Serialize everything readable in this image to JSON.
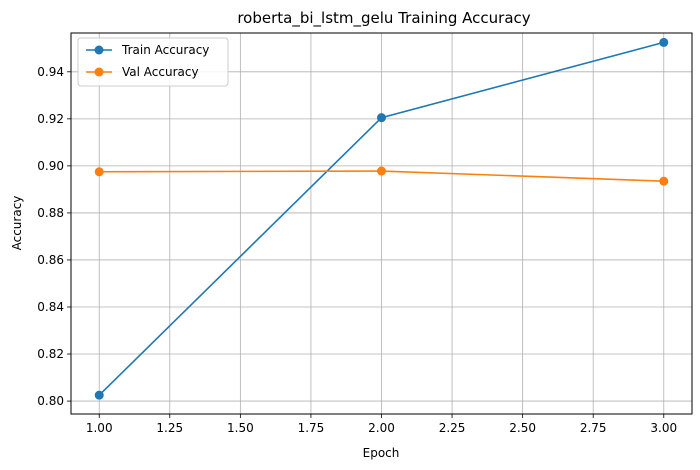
{
  "chart_data": {
    "type": "line",
    "title": "roberta_bi_lstm_gelu Training Accuracy",
    "xlabel": "Epoch",
    "ylabel": "Accuracy",
    "x": [
      1,
      2,
      3
    ],
    "xlim": [
      0.9,
      3.1
    ],
    "ylim": [
      0.7945,
      0.9565
    ],
    "xticks": [
      1.0,
      1.25,
      1.5,
      1.75,
      2.0,
      2.25,
      2.5,
      2.75,
      3.0
    ],
    "xtick_labels": [
      "1.00",
      "1.25",
      "1.50",
      "1.75",
      "2.00",
      "2.25",
      "2.50",
      "2.75",
      "3.00"
    ],
    "yticks": [
      0.8,
      0.82,
      0.84,
      0.86,
      0.88,
      0.9,
      0.92,
      0.94
    ],
    "ytick_labels": [
      "0.80",
      "0.82",
      "0.84",
      "0.86",
      "0.88",
      "0.90",
      "0.92",
      "0.94"
    ],
    "grid": true,
    "legend_position": "top-left",
    "series": [
      {
        "name": "Train Accuracy",
        "color": "#1f77b4",
        "values": [
          0.8025,
          0.9205,
          0.9525
        ]
      },
      {
        "name": "Val Accuracy",
        "color": "#ff7f0e",
        "values": [
          0.8975,
          0.8978,
          0.8935
        ]
      }
    ]
  }
}
